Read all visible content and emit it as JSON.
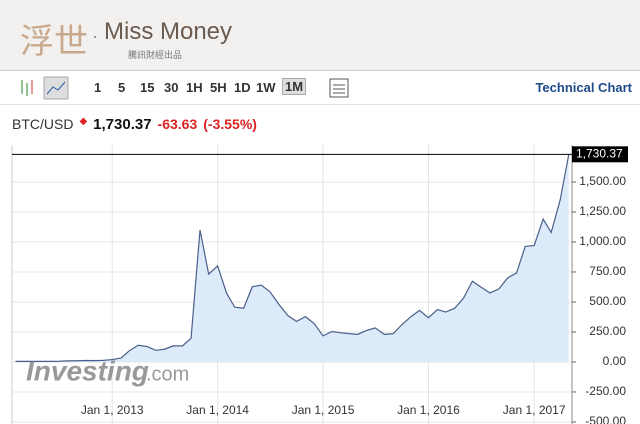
{
  "header": {
    "logo_mark": "浮世",
    "brand": "Miss Money",
    "tagline": "騰訊財經出品"
  },
  "toolbar": {
    "intervals": [
      "1",
      "5",
      "15",
      "30",
      "1H",
      "5H",
      "1D",
      "1W",
      "1M"
    ],
    "link": "Technical Chart"
  },
  "chart_data": {
    "type": "area",
    "symbol": "BTC/USD",
    "last": {
      "value": 1730.37,
      "label": "1,730.37"
    },
    "change": -63.63,
    "change_pct": {
      "value": -3.55,
      "label": "(-3.55%)"
    },
    "watermark": [
      "Investing",
      ".com"
    ],
    "color": "#4a5f8a",
    "fill": "#ddeafa",
    "grid": true,
    "x": [
      "2012-02-01",
      "2012-03-01",
      "2012-04-01",
      "2012-05-01",
      "2012-06-01",
      "2012-07-01",
      "2012-08-01",
      "2012-09-01",
      "2012-10-01",
      "2012-11-01",
      "2012-12-01",
      "2013-01-01",
      "2013-02-01",
      "2013-03-01",
      "2013-04-01",
      "2013-05-01",
      "2013-06-01",
      "2013-07-01",
      "2013-08-01",
      "2013-09-01",
      "2013-10-01",
      "2013-11-01",
      "2013-12-01",
      "2014-01-01",
      "2014-02-01",
      "2014-03-01",
      "2014-04-01",
      "2014-05-01",
      "2014-06-01",
      "2014-07-01",
      "2014-08-01",
      "2014-09-01",
      "2014-10-01",
      "2014-11-01",
      "2014-12-01",
      "2015-01-01",
      "2015-02-01",
      "2015-03-01",
      "2015-04-01",
      "2015-05-01",
      "2015-06-01",
      "2015-07-01",
      "2015-08-01",
      "2015-09-01",
      "2015-10-01",
      "2015-11-01",
      "2015-12-01",
      "2016-01-01",
      "2016-02-01",
      "2016-03-01",
      "2016-04-01",
      "2016-05-01",
      "2016-06-01",
      "2016-07-01",
      "2016-08-01",
      "2016-09-01",
      "2016-10-01",
      "2016-11-01",
      "2016-12-01",
      "2017-01-01",
      "2017-02-01",
      "2017-03-01",
      "2017-04-01",
      "2017-05-01"
    ],
    "values": [
      5,
      5,
      5,
      5,
      5,
      6,
      9,
      10,
      12,
      11,
      13,
      20,
      33,
      93,
      139,
      129,
      97,
      106,
      135,
      133,
      198,
      1100,
      732,
      800,
      573,
      457,
      448,
      627,
      640,
      586,
      480,
      387,
      338,
      378,
      320,
      217,
      254,
      244,
      236,
      230,
      263,
      284,
      230,
      236,
      311,
      377,
      430,
      369,
      437,
      416,
      448,
      531,
      673,
      624,
      575,
      609,
      700,
      742,
      963,
      970,
      1190,
      1080,
      1350,
      1730.37
    ],
    "xlim": [
      "2012-01-20",
      "2017-05-12"
    ],
    "xticks": [
      {
        "value": "2013-01-01",
        "label": "Jan 1, 2013"
      },
      {
        "value": "2014-01-01",
        "label": "Jan 1, 2014"
      },
      {
        "value": "2015-01-01",
        "label": "Jan 1, 2015"
      },
      {
        "value": "2016-01-01",
        "label": "Jan 1, 2016"
      },
      {
        "value": "2017-01-01",
        "label": "Jan 1, 2017"
      }
    ],
    "ylim": [
      -517,
      1808
    ],
    "yticks": [
      {
        "value": 1500,
        "label": "1,500.00"
      },
      {
        "value": 1250,
        "label": "1,250.00"
      },
      {
        "value": 1000,
        "label": "1,000.00"
      },
      {
        "value": 750,
        "label": "750.00"
      },
      {
        "value": 500,
        "label": "500.00"
      },
      {
        "value": 250,
        "label": "250.00"
      },
      {
        "value": 0,
        "label": "0.00"
      },
      {
        "value": -250,
        "label": "-250.00"
      },
      {
        "value": -500,
        "label": "-500.00"
      }
    ]
  }
}
